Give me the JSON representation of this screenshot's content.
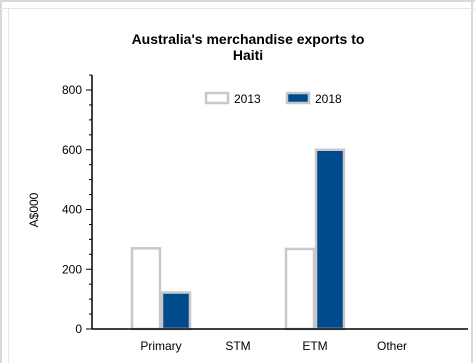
{
  "chart_data": {
    "type": "bar",
    "title_lines": [
      "Australia's merchandise exports to",
      "Haiti"
    ],
    "xlabel": "",
    "ylabel": "A$000",
    "ylim": [
      0,
      850
    ],
    "yticks": [
      0,
      200,
      400,
      600,
      800
    ],
    "categories": [
      "Primary",
      "STM",
      "ETM",
      "Other"
    ],
    "series": [
      {
        "name": "2013",
        "values": [
          270,
          0,
          268,
          0
        ],
        "fill": "#ffffff",
        "stroke": "#c8c8c8"
      },
      {
        "name": "2018",
        "values": [
          122,
          0,
          600,
          0
        ],
        "fill": "#004a8d",
        "stroke": "#c8c8c8"
      }
    ],
    "legend_position": "top-center",
    "grid": false
  }
}
